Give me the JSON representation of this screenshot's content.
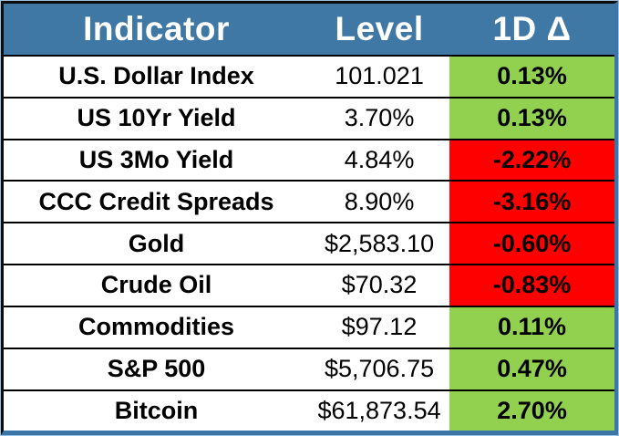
{
  "colors": {
    "header_bg": "#4078a5",
    "positive_bg": "#92d050",
    "negative_bg": "#ff0000",
    "header_text": "#ffffff",
    "body_text": "#000000",
    "frame_blue": "#3a76a8",
    "frame_dark": "#0d0d0d"
  },
  "chart_data": {
    "type": "table",
    "columns": [
      "Indicator",
      "Level",
      "1D Δ"
    ],
    "rows": [
      {
        "indicator": "U.S. Dollar Index",
        "level": "101.021",
        "delta": "0.13%",
        "direction": "positive"
      },
      {
        "indicator": "US 10Yr Yield",
        "level": "3.70%",
        "delta": "0.13%",
        "direction": "positive"
      },
      {
        "indicator": "US 3Mo Yield",
        "level": "4.84%",
        "delta": "-2.22%",
        "direction": "negative"
      },
      {
        "indicator": "CCC Credit Spreads",
        "level": "8.90%",
        "delta": "-3.16%",
        "direction": "negative"
      },
      {
        "indicator": "Gold",
        "level": "$2,583.10",
        "delta": "-0.60%",
        "direction": "negative"
      },
      {
        "indicator": "Crude Oil",
        "level": "$70.32",
        "delta": "-0.83%",
        "direction": "negative"
      },
      {
        "indicator": "Commodities",
        "level": "$97.12",
        "delta": "0.11%",
        "direction": "positive"
      },
      {
        "indicator": "S&P 500",
        "level": "$5,706.75",
        "delta": "0.47%",
        "direction": "positive"
      },
      {
        "indicator": "Bitcoin",
        "level": "$61,873.54",
        "delta": "2.70%",
        "direction": "positive"
      }
    ],
    "layout": {
      "header_position": "top",
      "grid": "horizontal-black-lines",
      "positive_cell_color": "#92d050",
      "negative_cell_color": "#ff0000"
    }
  }
}
